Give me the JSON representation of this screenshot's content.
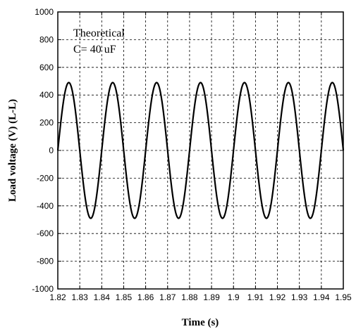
{
  "chart_data": {
    "type": "line",
    "title": "",
    "xlabel": "Time (s)",
    "ylabel": "Load voltage (V) (L-L)",
    "xlim": [
      1.82,
      1.95
    ],
    "ylim": [
      -1000,
      1000
    ],
    "x_ticks": [
      "1.82",
      "1.83",
      "1.84",
      "1.85",
      "1.86",
      "1.87",
      "1.88",
      "1.89",
      "1.9",
      "1.91",
      "1.92",
      "1.93",
      "1.94",
      "1.95"
    ],
    "y_ticks": [
      "1000",
      "800",
      "600",
      "400",
      "200",
      "0",
      "-200",
      "-400",
      "-600",
      "-800",
      "-1000"
    ],
    "grid": true,
    "annotations": [
      "Theoretical",
      "C= 40 uF"
    ],
    "series": [
      {
        "waveform": "sinusoid",
        "amplitude": 490,
        "frequency_hz": 50,
        "first_positive_peak_time": 1.825,
        "color": "#000000",
        "x": [
          1.82,
          1.825,
          1.83,
          1.835,
          1.84,
          1.845,
          1.85,
          1.855,
          1.86,
          1.865,
          1.87,
          1.875,
          1.88,
          1.885,
          1.89,
          1.895,
          1.9,
          1.905,
          1.91,
          1.915,
          1.92,
          1.925,
          1.93,
          1.935,
          1.94,
          1.945,
          1.95
        ],
        "y": [
          0,
          490,
          0,
          -490,
          0,
          490,
          0,
          -490,
          0,
          490,
          0,
          -490,
          0,
          490,
          0,
          -490,
          0,
          490,
          0,
          -490,
          0,
          490,
          0,
          -490,
          0,
          490,
          0
        ]
      }
    ]
  }
}
